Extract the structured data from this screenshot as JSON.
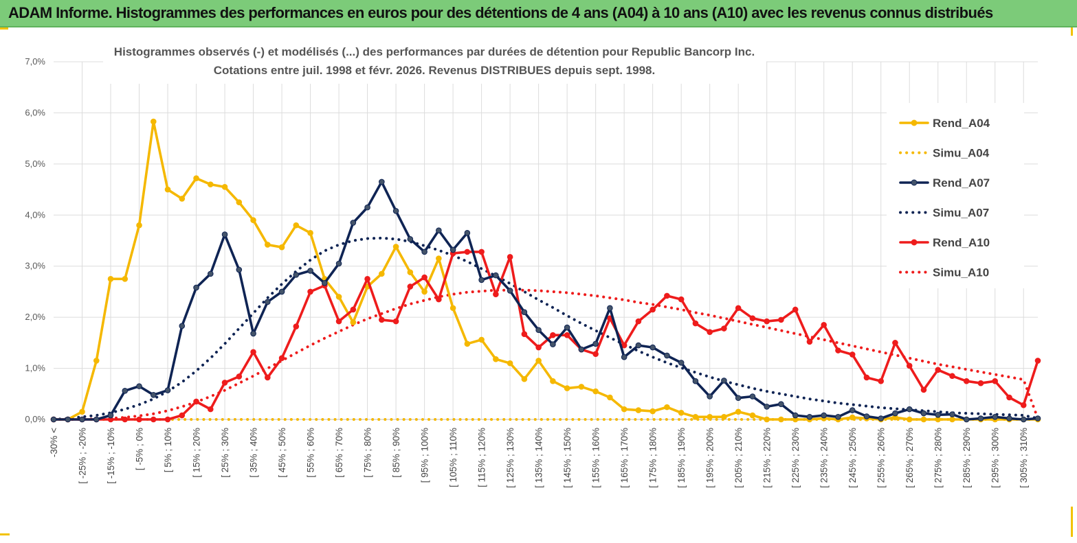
{
  "banner": {
    "title": "ADAM Informe. Histogrammes des performances en euros pour des détentions de 4 ans (A04) à 10 ans (A10) avec les revenus connus distribués"
  },
  "chart_data": {
    "type": "line",
    "title_lines": [
      "Histogrammes observés (-) et modélisés (...) des performances par durées de détention pour Republic Bancorp Inc.",
      "Cotations entre juil. 1998 et févr. 2026.  Revenus DISTRIBUES depuis sept. 1998."
    ],
    "ylim": [
      0,
      0.07
    ],
    "y_ticks": [
      {
        "value": 0.0,
        "label": "0,0%"
      },
      {
        "value": 0.01,
        "label": "1,0%"
      },
      {
        "value": 0.02,
        "label": "2,0%"
      },
      {
        "value": 0.03,
        "label": "3,0%"
      },
      {
        "value": 0.04,
        "label": "4,0%"
      },
      {
        "value": 0.05,
        "label": "5,0%"
      },
      {
        "value": 0.06,
        "label": "6,0%"
      },
      {
        "value": 0.07,
        "label": "7,0%"
      }
    ],
    "grid": true,
    "legend_position": "right",
    "category_count": 70,
    "x_ticks": [
      {
        "index": 0,
        "label": "-30% <"
      },
      {
        "index": 2,
        "label": "[ -25% ; -20%"
      },
      {
        "index": 4,
        "label": "[ -15% ; -10%"
      },
      {
        "index": 6,
        "label": "[ -5% ; 0%"
      },
      {
        "index": 8,
        "label": "[ 5% ; 10%"
      },
      {
        "index": 10,
        "label": "[ 15% ; 20%"
      },
      {
        "index": 12,
        "label": "[ 25% ; 30%"
      },
      {
        "index": 14,
        "label": "[ 35% ; 40%"
      },
      {
        "index": 16,
        "label": "[ 45% ; 50%"
      },
      {
        "index": 18,
        "label": "[ 55% ; 60%"
      },
      {
        "index": 20,
        "label": "[ 65% ; 70%"
      },
      {
        "index": 22,
        "label": "[ 75% ; 80%"
      },
      {
        "index": 24,
        "label": "[ 85% ; 90%"
      },
      {
        "index": 26,
        "label": "[ 95% ; 100%"
      },
      {
        "index": 28,
        "label": "[ 105% ; 110%"
      },
      {
        "index": 30,
        "label": "[ 115% ; 120%"
      },
      {
        "index": 32,
        "label": "[ 125% ; 130%"
      },
      {
        "index": 34,
        "label": "[ 135% ; 140%"
      },
      {
        "index": 36,
        "label": "[ 145% ; 150%"
      },
      {
        "index": 38,
        "label": "[ 155% ; 160%"
      },
      {
        "index": 40,
        "label": "[ 165% ; 170%"
      },
      {
        "index": 42,
        "label": "[ 175% ; 180%"
      },
      {
        "index": 44,
        "label": "[ 185% ; 190%"
      },
      {
        "index": 46,
        "label": "[ 195% ; 200%"
      },
      {
        "index": 48,
        "label": "[ 205% ; 210%"
      },
      {
        "index": 50,
        "label": "[ 215% ; 220%"
      },
      {
        "index": 52,
        "label": "[ 225% ; 230%"
      },
      {
        "index": 54,
        "label": "[ 235% ; 240%"
      },
      {
        "index": 56,
        "label": "[ 245% ; 250%"
      },
      {
        "index": 58,
        "label": "[ 255% ; 260%"
      },
      {
        "index": 60,
        "label": "[ 265% ; 270%"
      },
      {
        "index": 62,
        "label": "[ 275% ; 280%"
      },
      {
        "index": 64,
        "label": "[ 285% ; 290%"
      },
      {
        "index": 66,
        "label": "[ 295% ; 300%"
      },
      {
        "index": 68,
        "label": "[ 305% ; 310%"
      }
    ],
    "series": [
      {
        "name": "Rend_A04",
        "style": "solid",
        "marker": true,
        "color": "#f5b800",
        "values": [
          0,
          0,
          0.0015,
          0.0115,
          0.0275,
          0.0275,
          0.038,
          0.0583,
          0.045,
          0.0432,
          0.0472,
          0.046,
          0.0455,
          0.0425,
          0.039,
          0.0342,
          0.0337,
          0.038,
          0.0365,
          0.0275,
          0.024,
          0.019,
          0.026,
          0.0285,
          0.0338,
          0.0288,
          0.025,
          0.0315,
          0.0218,
          0.0148,
          0.0156,
          0.0118,
          0.011,
          0.0079,
          0.0115,
          0.0075,
          0.0061,
          0.0064,
          0.0055,
          0.0043,
          0.002,
          0.0018,
          0.0016,
          0.0024,
          0.0013,
          0.0005,
          0.0005,
          0.0005,
          0.0015,
          0.0008,
          0,
          0,
          0,
          0,
          0.0002,
          0,
          0.0004,
          0.0002,
          0,
          0.0004,
          0,
          0,
          0,
          0,
          0,
          0,
          0,
          0,
          0,
          0
        ]
      },
      {
        "name": "Simu_A04",
        "style": "dotted",
        "marker": false,
        "color": "#f5b800",
        "values": [
          0,
          0,
          0,
          0,
          0,
          0,
          0,
          0,
          0,
          0,
          0,
          0,
          0,
          0,
          0,
          0,
          0,
          0,
          0,
          0,
          0,
          0,
          0,
          0,
          0,
          0,
          0,
          0,
          0,
          0,
          0,
          0,
          0,
          0,
          0,
          0,
          0,
          0,
          0,
          0,
          0,
          0,
          0,
          0,
          0,
          0,
          0,
          0,
          0,
          0,
          0,
          0,
          0,
          0,
          0,
          0,
          0,
          0,
          0,
          0,
          0,
          0,
          0,
          0,
          0,
          0,
          0,
          0,
          0,
          0
        ]
      },
      {
        "name": "Rend_A07",
        "style": "solid",
        "marker": true,
        "color": "#0f2454",
        "values": [
          0,
          0,
          0,
          0,
          0.0008,
          0.0056,
          0.0065,
          0.0048,
          0.0057,
          0.0183,
          0.0258,
          0.0285,
          0.0362,
          0.0293,
          0.0168,
          0.023,
          0.025,
          0.0283,
          0.0291,
          0.0267,
          0.0305,
          0.0385,
          0.0415,
          0.0465,
          0.0408,
          0.0353,
          0.0328,
          0.037,
          0.0332,
          0.0365,
          0.0273,
          0.0282,
          0.0252,
          0.021,
          0.0175,
          0.0147,
          0.018,
          0.0137,
          0.0148,
          0.0218,
          0.0122,
          0.0145,
          0.0141,
          0.0125,
          0.0111,
          0.0075,
          0.0045,
          0.0076,
          0.0042,
          0.0045,
          0.0025,
          0.003,
          0.0008,
          0.0005,
          0.0008,
          0.0005,
          0.0018,
          0.0006,
          0.0002,
          0.0012,
          0.002,
          0.0012,
          0.0009,
          0.001,
          0,
          0.0002,
          0.0005,
          0.0002,
          0,
          0.0002
        ]
      },
      {
        "name": "Simu_A07",
        "style": "dotted",
        "marker": false,
        "color": "#0f2454",
        "values": [
          0,
          0.0002,
          0.0005,
          0.0008,
          0.0013,
          0.002,
          0.0029,
          0.004,
          0.0055,
          0.0073,
          0.0095,
          0.012,
          0.0148,
          0.0178,
          0.0208,
          0.0238,
          0.0265,
          0.029,
          0.0312,
          0.033,
          0.0342,
          0.035,
          0.0354,
          0.0355,
          0.0353,
          0.0348,
          0.034,
          0.0331,
          0.0321,
          0.0309,
          0.0295,
          0.0281,
          0.0266,
          0.025,
          0.0234,
          0.0219,
          0.0203,
          0.0188,
          0.0174,
          0.016,
          0.0147,
          0.0134,
          0.0122,
          0.0111,
          0.0101,
          0.0092,
          0.0083,
          0.0075,
          0.0068,
          0.0061,
          0.0055,
          0.005,
          0.0045,
          0.004,
          0.0036,
          0.0032,
          0.0029,
          0.0026,
          0.0023,
          0.0021,
          0.0019,
          0.0017,
          0.0015,
          0.0013,
          0.0012,
          0.0011,
          0.001,
          0.0009,
          0.0008,
          0.0002
        ]
      },
      {
        "name": "Rend_A10",
        "style": "solid",
        "marker": true,
        "color": "#ee1c1c",
        "values": [
          0,
          0,
          0,
          0,
          0,
          0,
          0,
          0,
          0,
          0.0008,
          0.0035,
          0.002,
          0.0072,
          0.0084,
          0.0132,
          0.0082,
          0.012,
          0.0182,
          0.025,
          0.0262,
          0.0192,
          0.0215,
          0.0275,
          0.0195,
          0.0192,
          0.026,
          0.0278,
          0.0235,
          0.0325,
          0.0328,
          0.0328,
          0.0245,
          0.0318,
          0.0167,
          0.0141,
          0.0165,
          0.0165,
          0.0137,
          0.0128,
          0.0198,
          0.0145,
          0.0192,
          0.0215,
          0.0242,
          0.0235,
          0.0188,
          0.0171,
          0.0178,
          0.0218,
          0.0198,
          0.0192,
          0.0195,
          0.0215,
          0.0152,
          0.0185,
          0.0135,
          0.0127,
          0.0082,
          0.0075,
          0.015,
          0.0105,
          0.0058,
          0.0097,
          0.0085,
          0.0075,
          0.0071,
          0.0075,
          0.0043,
          0.0028,
          0.0115
        ]
      },
      {
        "name": "Simu_A10",
        "style": "dotted",
        "marker": false,
        "color": "#ee1c1c",
        "values": [
          0,
          0,
          0,
          0.0001,
          0.0002,
          0.0004,
          0.0007,
          0.0011,
          0.0017,
          0.0025,
          0.0034,
          0.0045,
          0.0057,
          0.0071,
          0.0085,
          0.01,
          0.0115,
          0.013,
          0.0145,
          0.0159,
          0.0172,
          0.0185,
          0.0197,
          0.0207,
          0.0217,
          0.0226,
          0.0233,
          0.024,
          0.0245,
          0.0249,
          0.0251,
          0.0253,
          0.0253,
          0.0253,
          0.0252,
          0.025,
          0.0248,
          0.0245,
          0.0242,
          0.0238,
          0.0234,
          0.0229,
          0.0225,
          0.022,
          0.0215,
          0.0209,
          0.0204,
          0.0198,
          0.0192,
          0.0186,
          0.018,
          0.0174,
          0.0168,
          0.0162,
          0.0156,
          0.015,
          0.0144,
          0.0138,
          0.0132,
          0.0126,
          0.012,
          0.0114,
          0.0108,
          0.0103,
          0.0098,
          0.0093,
          0.0088,
          0.0083,
          0.0078,
          0.0002
        ]
      }
    ]
  }
}
